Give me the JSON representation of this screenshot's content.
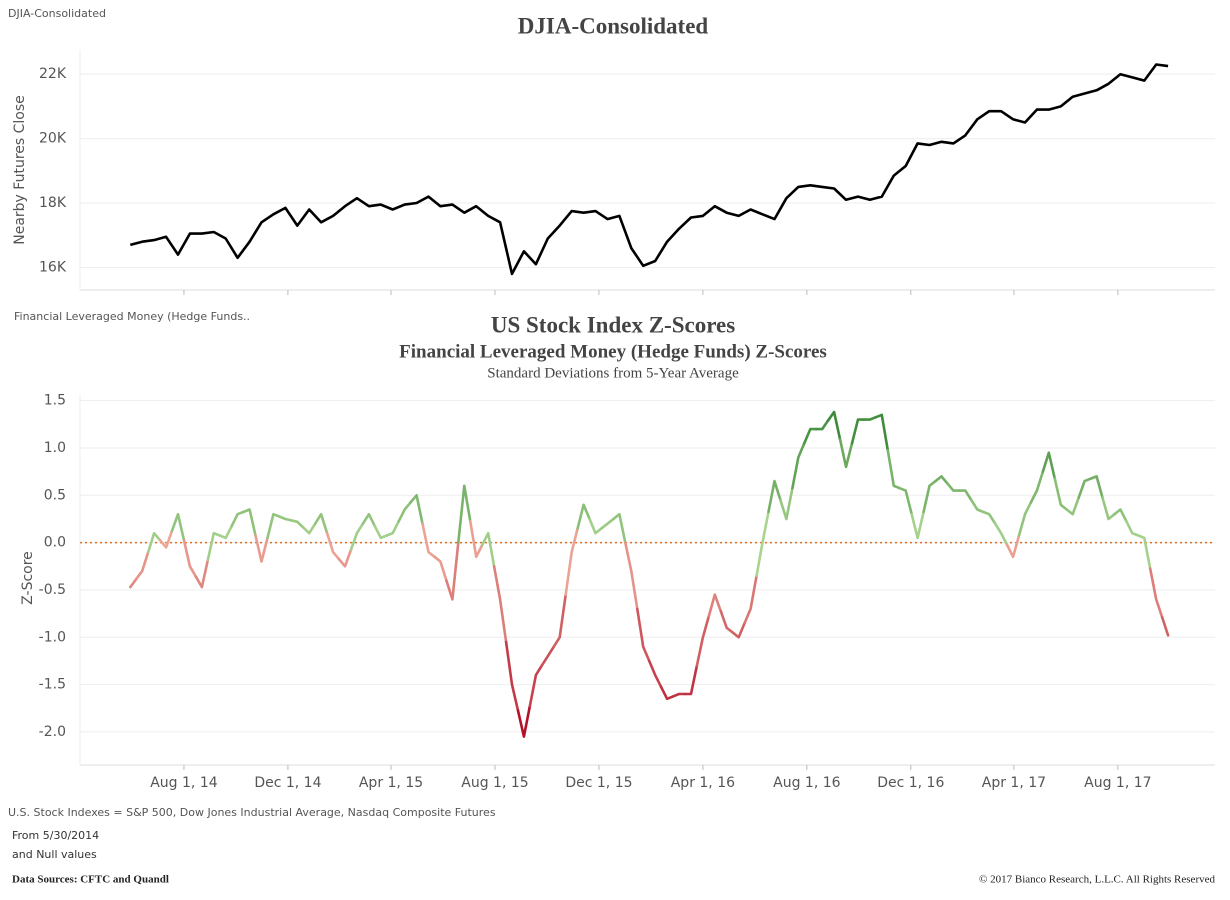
{
  "chart_data": [
    {
      "type": "line",
      "caption": "DJIA-Consolidated",
      "title": "DJIA-Consolidated",
      "ylabel": "Nearby Futures Close",
      "color": "#000000",
      "xlim": [
        "2014-04-01",
        "2017-11-23"
      ],
      "xticks": [
        "2014-08-01",
        "2014-12-01",
        "2015-04-01",
        "2015-08-01",
        "2015-12-01",
        "2016-04-01",
        "2016-08-01",
        "2016-12-01",
        "2017-04-01",
        "2017-08-01"
      ],
      "ylim": [
        15300,
        22750
      ],
      "yticks": [
        {
          "value": 16000,
          "label": "16K"
        },
        {
          "value": 18000,
          "label": "18K"
        },
        {
          "value": 20000,
          "label": "20K"
        },
        {
          "value": 22000,
          "label": "22K"
        }
      ],
      "grid": true,
      "x": [
        "2014-05-30",
        "2014-06-13",
        "2014-06-27",
        "2014-07-11",
        "2014-07-25",
        "2014-08-08",
        "2014-08-22",
        "2014-09-05",
        "2014-09-19",
        "2014-10-03",
        "2014-10-17",
        "2014-10-31",
        "2014-11-14",
        "2014-11-28",
        "2014-12-12",
        "2014-12-26",
        "2015-01-09",
        "2015-01-23",
        "2015-02-06",
        "2015-02-20",
        "2015-03-06",
        "2015-03-20",
        "2015-04-03",
        "2015-04-17",
        "2015-05-01",
        "2015-05-15",
        "2015-05-29",
        "2015-06-12",
        "2015-06-26",
        "2015-07-10",
        "2015-07-24",
        "2015-08-07",
        "2015-08-21",
        "2015-09-04",
        "2015-09-18",
        "2015-10-02",
        "2015-10-16",
        "2015-10-30",
        "2015-11-13",
        "2015-11-27",
        "2015-12-11",
        "2015-12-25",
        "2016-01-08",
        "2016-01-22",
        "2016-02-05",
        "2016-02-19",
        "2016-03-04",
        "2016-03-18",
        "2016-04-01",
        "2016-04-15",
        "2016-04-29",
        "2016-05-13",
        "2016-05-27",
        "2016-06-10",
        "2016-06-24",
        "2016-07-08",
        "2016-07-22",
        "2016-08-05",
        "2016-08-19",
        "2016-09-02",
        "2016-09-16",
        "2016-09-30",
        "2016-10-14",
        "2016-10-28",
        "2016-11-11",
        "2016-11-25",
        "2016-12-09",
        "2016-12-23",
        "2017-01-06",
        "2017-01-20",
        "2017-02-03",
        "2017-02-17",
        "2017-03-03",
        "2017-03-17",
        "2017-03-31",
        "2017-04-14",
        "2017-04-28",
        "2017-05-12",
        "2017-05-26",
        "2017-06-09",
        "2017-06-23",
        "2017-07-07",
        "2017-07-21",
        "2017-08-04",
        "2017-08-18",
        "2017-09-01",
        "2017-09-15",
        "2017-09-29"
      ],
      "values": [
        16700,
        16800,
        16850,
        16950,
        16400,
        17050,
        17050,
        17100,
        16900,
        16300,
        16800,
        17400,
        17650,
        17850,
        17300,
        17800,
        17400,
        17600,
        17900,
        18150,
        17900,
        17950,
        17800,
        17950,
        18000,
        18200,
        17900,
        17950,
        17700,
        17900,
        17600,
        17400,
        15800,
        16500,
        16100,
        16900,
        17300,
        17750,
        17700,
        17750,
        17500,
        17600,
        16600,
        16050,
        16200,
        16800,
        17200,
        17550,
        17600,
        17900,
        17700,
        17600,
        17800,
        17650,
        17500,
        18150,
        18500,
        18550,
        18500,
        18450,
        18100,
        18200,
        18100,
        18200,
        18850,
        19150,
        19850,
        19800,
        19900,
        19850,
        20100,
        20600,
        20850,
        20850,
        20600,
        20500,
        20900,
        20900,
        21000,
        21300,
        21400,
        21500,
        21700,
        22000,
        21900,
        21800,
        22300,
        22250
      ]
    },
    {
      "type": "line",
      "caption": "Financial Leveraged Money (Hedge Funds..",
      "title": "US Stock Index Z-Scores",
      "subtitle": "Financial Leveraged Money (Hedge Funds) Z-Scores",
      "note": "Standard Deviations from 5-Year Average",
      "ylabel": "Z-Score",
      "colors": {
        "negative": "#b3122b",
        "near_zero_negative": "#eeaa99",
        "near_zero_positive": "#a9d48f",
        "positive": "#3e8a3a"
      },
      "reference_line": 0,
      "reference_color": "#e07020",
      "xlim": [
        "2014-04-01",
        "2017-11-23"
      ],
      "xticks": [
        {
          "value": "2014-08-01",
          "label": "Aug 1, 14"
        },
        {
          "value": "2014-12-01",
          "label": "Dec 1, 14"
        },
        {
          "value": "2015-04-01",
          "label": "Apr 1, 15"
        },
        {
          "value": "2015-08-01",
          "label": "Aug 1, 15"
        },
        {
          "value": "2015-12-01",
          "label": "Dec 1, 15"
        },
        {
          "value": "2016-04-01",
          "label": "Apr 1, 16"
        },
        {
          "value": "2016-08-01",
          "label": "Aug 1, 16"
        },
        {
          "value": "2016-12-01",
          "label": "Dec 1, 16"
        },
        {
          "value": "2017-04-01",
          "label": "Apr 1, 17"
        },
        {
          "value": "2017-08-01",
          "label": "Aug 1, 17"
        }
      ],
      "ylim": [
        -2.35,
        1.56
      ],
      "yticks": [
        {
          "value": -2,
          "label": "-2.0"
        },
        -1.5,
        {
          "value": -1,
          "label": "-1.0"
        },
        -0.5,
        {
          "value": 0,
          "label": "0.0"
        },
        0.5,
        {
          "value": 1,
          "label": "1.0"
        },
        1.5
      ],
      "grid": true,
      "x": [
        "2014-05-30",
        "2014-06-13",
        "2014-06-27",
        "2014-07-11",
        "2014-07-25",
        "2014-08-08",
        "2014-08-22",
        "2014-09-05",
        "2014-09-19",
        "2014-10-03",
        "2014-10-17",
        "2014-10-31",
        "2014-11-14",
        "2014-11-28",
        "2014-12-12",
        "2014-12-26",
        "2015-01-09",
        "2015-01-23",
        "2015-02-06",
        "2015-02-20",
        "2015-03-06",
        "2015-03-20",
        "2015-04-03",
        "2015-04-17",
        "2015-05-01",
        "2015-05-15",
        "2015-05-29",
        "2015-06-12",
        "2015-06-26",
        "2015-07-10",
        "2015-07-24",
        "2015-08-07",
        "2015-08-21",
        "2015-09-04",
        "2015-09-18",
        "2015-10-02",
        "2015-10-16",
        "2015-10-30",
        "2015-11-13",
        "2015-11-27",
        "2015-12-11",
        "2015-12-25",
        "2016-01-08",
        "2016-01-22",
        "2016-02-05",
        "2016-02-19",
        "2016-03-04",
        "2016-03-18",
        "2016-04-01",
        "2016-04-15",
        "2016-04-29",
        "2016-05-13",
        "2016-05-27",
        "2016-06-10",
        "2016-06-24",
        "2016-07-08",
        "2016-07-22",
        "2016-08-05",
        "2016-08-19",
        "2016-09-02",
        "2016-09-16",
        "2016-09-30",
        "2016-10-14",
        "2016-10-28",
        "2016-11-11",
        "2016-11-25",
        "2016-12-09",
        "2016-12-23",
        "2017-01-06",
        "2017-01-20",
        "2017-02-03",
        "2017-02-17",
        "2017-03-03",
        "2017-03-17",
        "2017-03-31",
        "2017-04-14",
        "2017-04-28",
        "2017-05-12",
        "2017-05-26",
        "2017-06-09",
        "2017-06-23",
        "2017-07-07",
        "2017-07-21",
        "2017-08-04",
        "2017-08-18",
        "2017-09-01",
        "2017-09-15",
        "2017-09-29"
      ],
      "values": [
        -0.47,
        -0.3,
        0.1,
        -0.05,
        0.3,
        -0.25,
        -0.47,
        0.1,
        0.05,
        0.3,
        0.35,
        -0.2,
        0.3,
        0.25,
        0.22,
        0.1,
        0.3,
        -0.1,
        -0.25,
        0.1,
        0.3,
        0.05,
        0.1,
        0.35,
        0.5,
        -0.1,
        -0.2,
        -0.6,
        0.6,
        -0.15,
        0.1,
        -0.6,
        -1.5,
        -2.05,
        -1.4,
        -1.2,
        -1.0,
        -0.1,
        0.4,
        0.1,
        0.2,
        0.3,
        -0.3,
        -1.1,
        -1.4,
        -1.65,
        -1.6,
        -1.6,
        -1.0,
        -0.55,
        -0.9,
        -1.0,
        -0.7,
        0.0,
        0.65,
        0.25,
        0.9,
        1.2,
        1.2,
        1.38,
        0.8,
        1.3,
        1.3,
        1.35,
        0.6,
        0.55,
        0.05,
        0.6,
        0.7,
        0.55,
        0.55,
        0.35,
        0.3,
        0.1,
        -0.15,
        0.3,
        0.55,
        0.95,
        0.4,
        0.3,
        0.65,
        0.7,
        0.25,
        0.35,
        0.1,
        0.05,
        -0.6,
        -0.98
      ]
    }
  ],
  "notes": [
    "U.S. Stock Indexes = S&P 500, Dow Jones Industrial Average, Nasdaq Composite Futures",
    "From 5/30/2014",
    "and Null values"
  ],
  "footer": {
    "left": "Data Sources: CFTC and Quandl",
    "right": "© 2017 Bianco Research, L.L.C. All Rights Reserved"
  }
}
